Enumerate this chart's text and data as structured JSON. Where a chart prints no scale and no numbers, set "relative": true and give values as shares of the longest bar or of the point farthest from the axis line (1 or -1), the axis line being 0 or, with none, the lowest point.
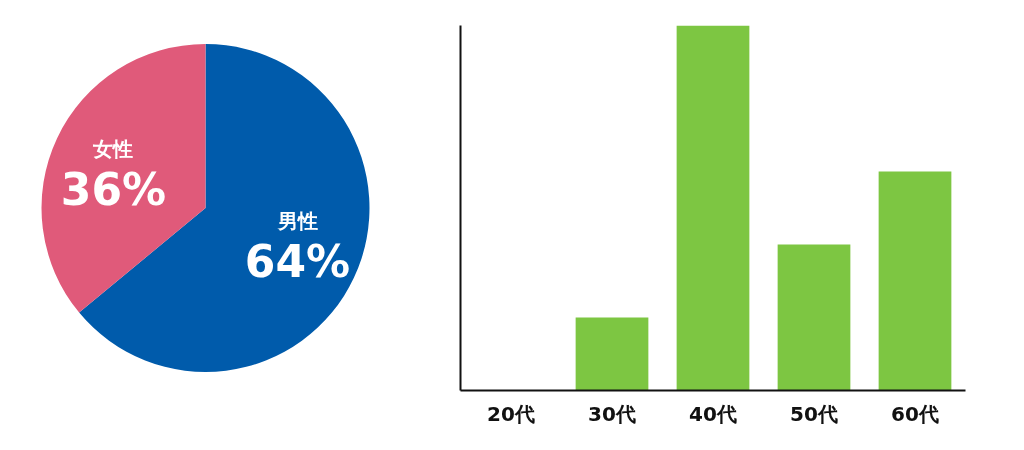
{
  "chart_data": [
    {
      "type": "pie",
      "categories": [
        "男性",
        "女性"
      ],
      "values": [
        64,
        36
      ],
      "colors": [
        "#005bab",
        "#e05a7a"
      ],
      "value_labels": [
        "64%",
        "36%"
      ]
    },
    {
      "type": "bar",
      "categories": [
        "20代",
        "30代",
        "40代",
        "50代",
        "60代"
      ],
      "values": [
        0,
        0.2,
        1,
        0.4,
        0.6
      ],
      "color": "#7dc642",
      "relative": true
    }
  ]
}
